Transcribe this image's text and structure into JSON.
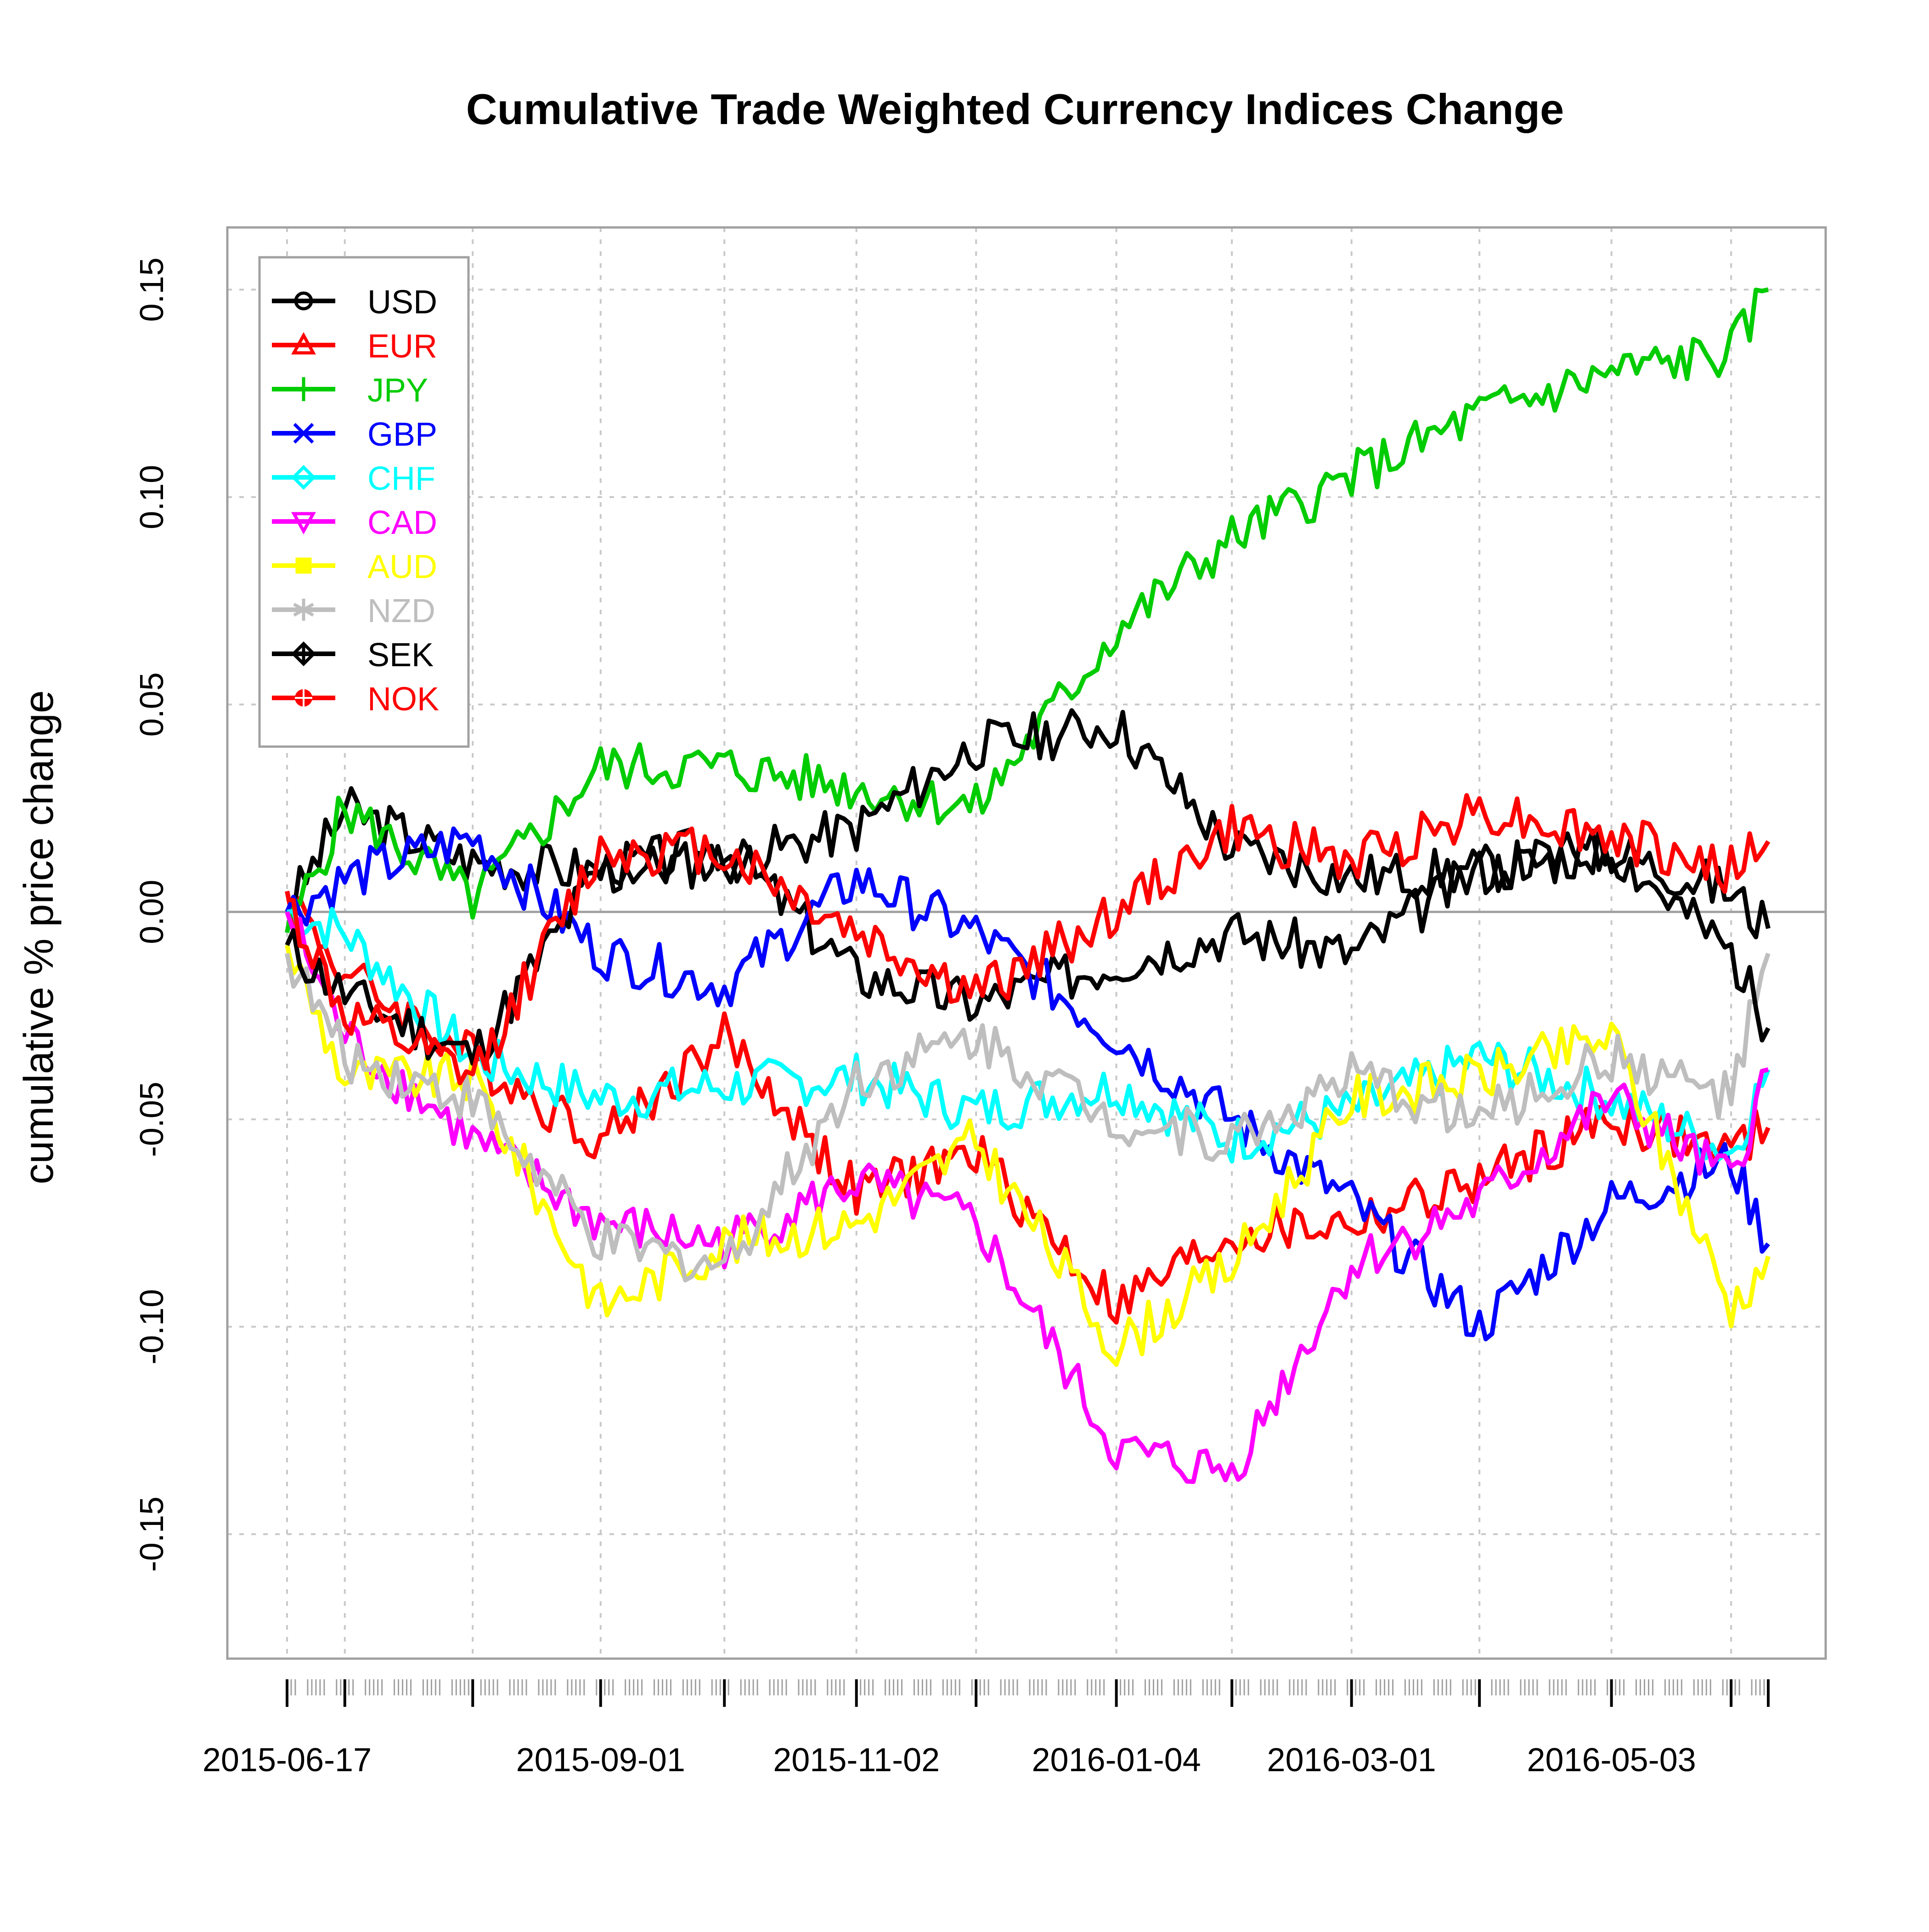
{
  "chart_data": {
    "type": "line",
    "title": "Cumulative Trade Weighted Currency Indices Change",
    "xlabel": "",
    "ylabel": "cumulative % price change",
    "ylim": [
      -0.18,
      0.165
    ],
    "yticks": [
      0.15,
      0.1,
      0.05,
      0.0,
      -0.05,
      -0.1,
      -0.15
    ],
    "ytick_labels": [
      "0.15",
      "0.10",
      "0.05",
      "0.00",
      "-0.05",
      "-0.10",
      "-0.15"
    ],
    "x_dates": [
      "2015-06-17",
      "2015-07-01",
      "2015-08-01",
      "2015-09-01",
      "2015-10-01",
      "2015-11-02",
      "2015-12-01",
      "2016-01-04",
      "2016-02-01",
      "2016-03-01",
      "2016-04-01",
      "2016-05-03",
      "2016-06-01",
      "2016-06-10"
    ],
    "xticks_major": [
      "2015-06-17",
      "2015-07-01",
      "2015-08-01",
      "2015-09-01",
      "2015-10-01",
      "2015-11-02",
      "2015-12-01",
      "2016-01-04",
      "2016-02-01",
      "2016-03-01",
      "2016-04-01",
      "2016-05-03",
      "2016-06-01",
      "2016-06-10"
    ],
    "xtick_labels": [
      "2015-06-17",
      "2015-09-01",
      "2015-11-02",
      "2016-01-04",
      "2016-03-01",
      "2016-05-03"
    ],
    "grid": true,
    "zero_line": true,
    "legend_position": "top-left",
    "series": [
      {
        "name": "USD",
        "color": "#000000",
        "marker": "circle",
        "values": [
          0.0,
          0.025,
          0.012,
          0.01,
          0.016,
          -0.015,
          -0.022,
          -0.012,
          -0.005,
          -0.01,
          0.01,
          0.015,
          0.005,
          -0.004
        ]
      },
      {
        "name": "EUR",
        "color": "#ff0000",
        "marker": "triangle",
        "values": [
          0.005,
          -0.015,
          -0.035,
          -0.055,
          -0.03,
          -0.068,
          -0.058,
          -0.095,
          -0.078,
          -0.075,
          -0.065,
          -0.05,
          -0.058,
          -0.052
        ]
      },
      {
        "name": "JPY",
        "color": "#00cc00",
        "marker": "plus",
        "values": [
          -0.005,
          0.025,
          0.003,
          0.035,
          0.035,
          0.03,
          0.025,
          0.068,
          0.09,
          0.105,
          0.12,
          0.13,
          0.135,
          0.15
        ]
      },
      {
        "name": "GBP",
        "color": "#0000ff",
        "marker": "x",
        "values": [
          0.0,
          0.008,
          0.018,
          -0.01,
          -0.018,
          0.008,
          -0.005,
          -0.03,
          -0.05,
          -0.07,
          -0.1,
          -0.07,
          -0.06,
          -0.08
        ]
      },
      {
        "name": "CHF",
        "color": "#00ffff",
        "marker": "diamond",
        "values": [
          0.0,
          -0.005,
          -0.035,
          -0.045,
          -0.042,
          -0.04,
          -0.048,
          -0.042,
          -0.055,
          -0.048,
          -0.035,
          -0.045,
          -0.058,
          -0.038
        ]
      },
      {
        "name": "CAD",
        "color": "#ff00ff",
        "marker": "triangle-down",
        "values": [
          0.0,
          -0.03,
          -0.055,
          -0.075,
          -0.08,
          -0.065,
          -0.075,
          -0.13,
          -0.135,
          -0.085,
          -0.07,
          -0.045,
          -0.065,
          -0.038
        ]
      },
      {
        "name": "AUD",
        "color": "#ffff00",
        "marker": "square",
        "values": [
          -0.008,
          -0.04,
          -0.04,
          -0.095,
          -0.08,
          -0.075,
          -0.055,
          -0.105,
          -0.085,
          -0.045,
          -0.04,
          -0.03,
          -0.095,
          -0.083
        ]
      },
      {
        "name": "NZD",
        "color": "#bebebe",
        "marker": "asterisk",
        "values": [
          -0.01,
          -0.035,
          -0.045,
          -0.08,
          -0.085,
          -0.04,
          -0.03,
          -0.05,
          -0.055,
          -0.04,
          -0.05,
          -0.035,
          -0.045,
          -0.01
        ]
      },
      {
        "name": "SEK",
        "color": "#000000",
        "marker": "diamond-plus",
        "values": [
          -0.008,
          -0.02,
          -0.035,
          0.01,
          0.012,
          0.02,
          0.04,
          0.045,
          0.015,
          0.008,
          0.01,
          0.015,
          -0.01,
          -0.028
        ]
      },
      {
        "name": "NOK",
        "color": "#ff0000",
        "marker": "circle-plus",
        "values": [
          0.003,
          -0.025,
          -0.04,
          0.015,
          0.015,
          -0.005,
          -0.02,
          0.0,
          0.02,
          0.012,
          0.025,
          0.018,
          0.01,
          0.017
        ]
      }
    ]
  }
}
